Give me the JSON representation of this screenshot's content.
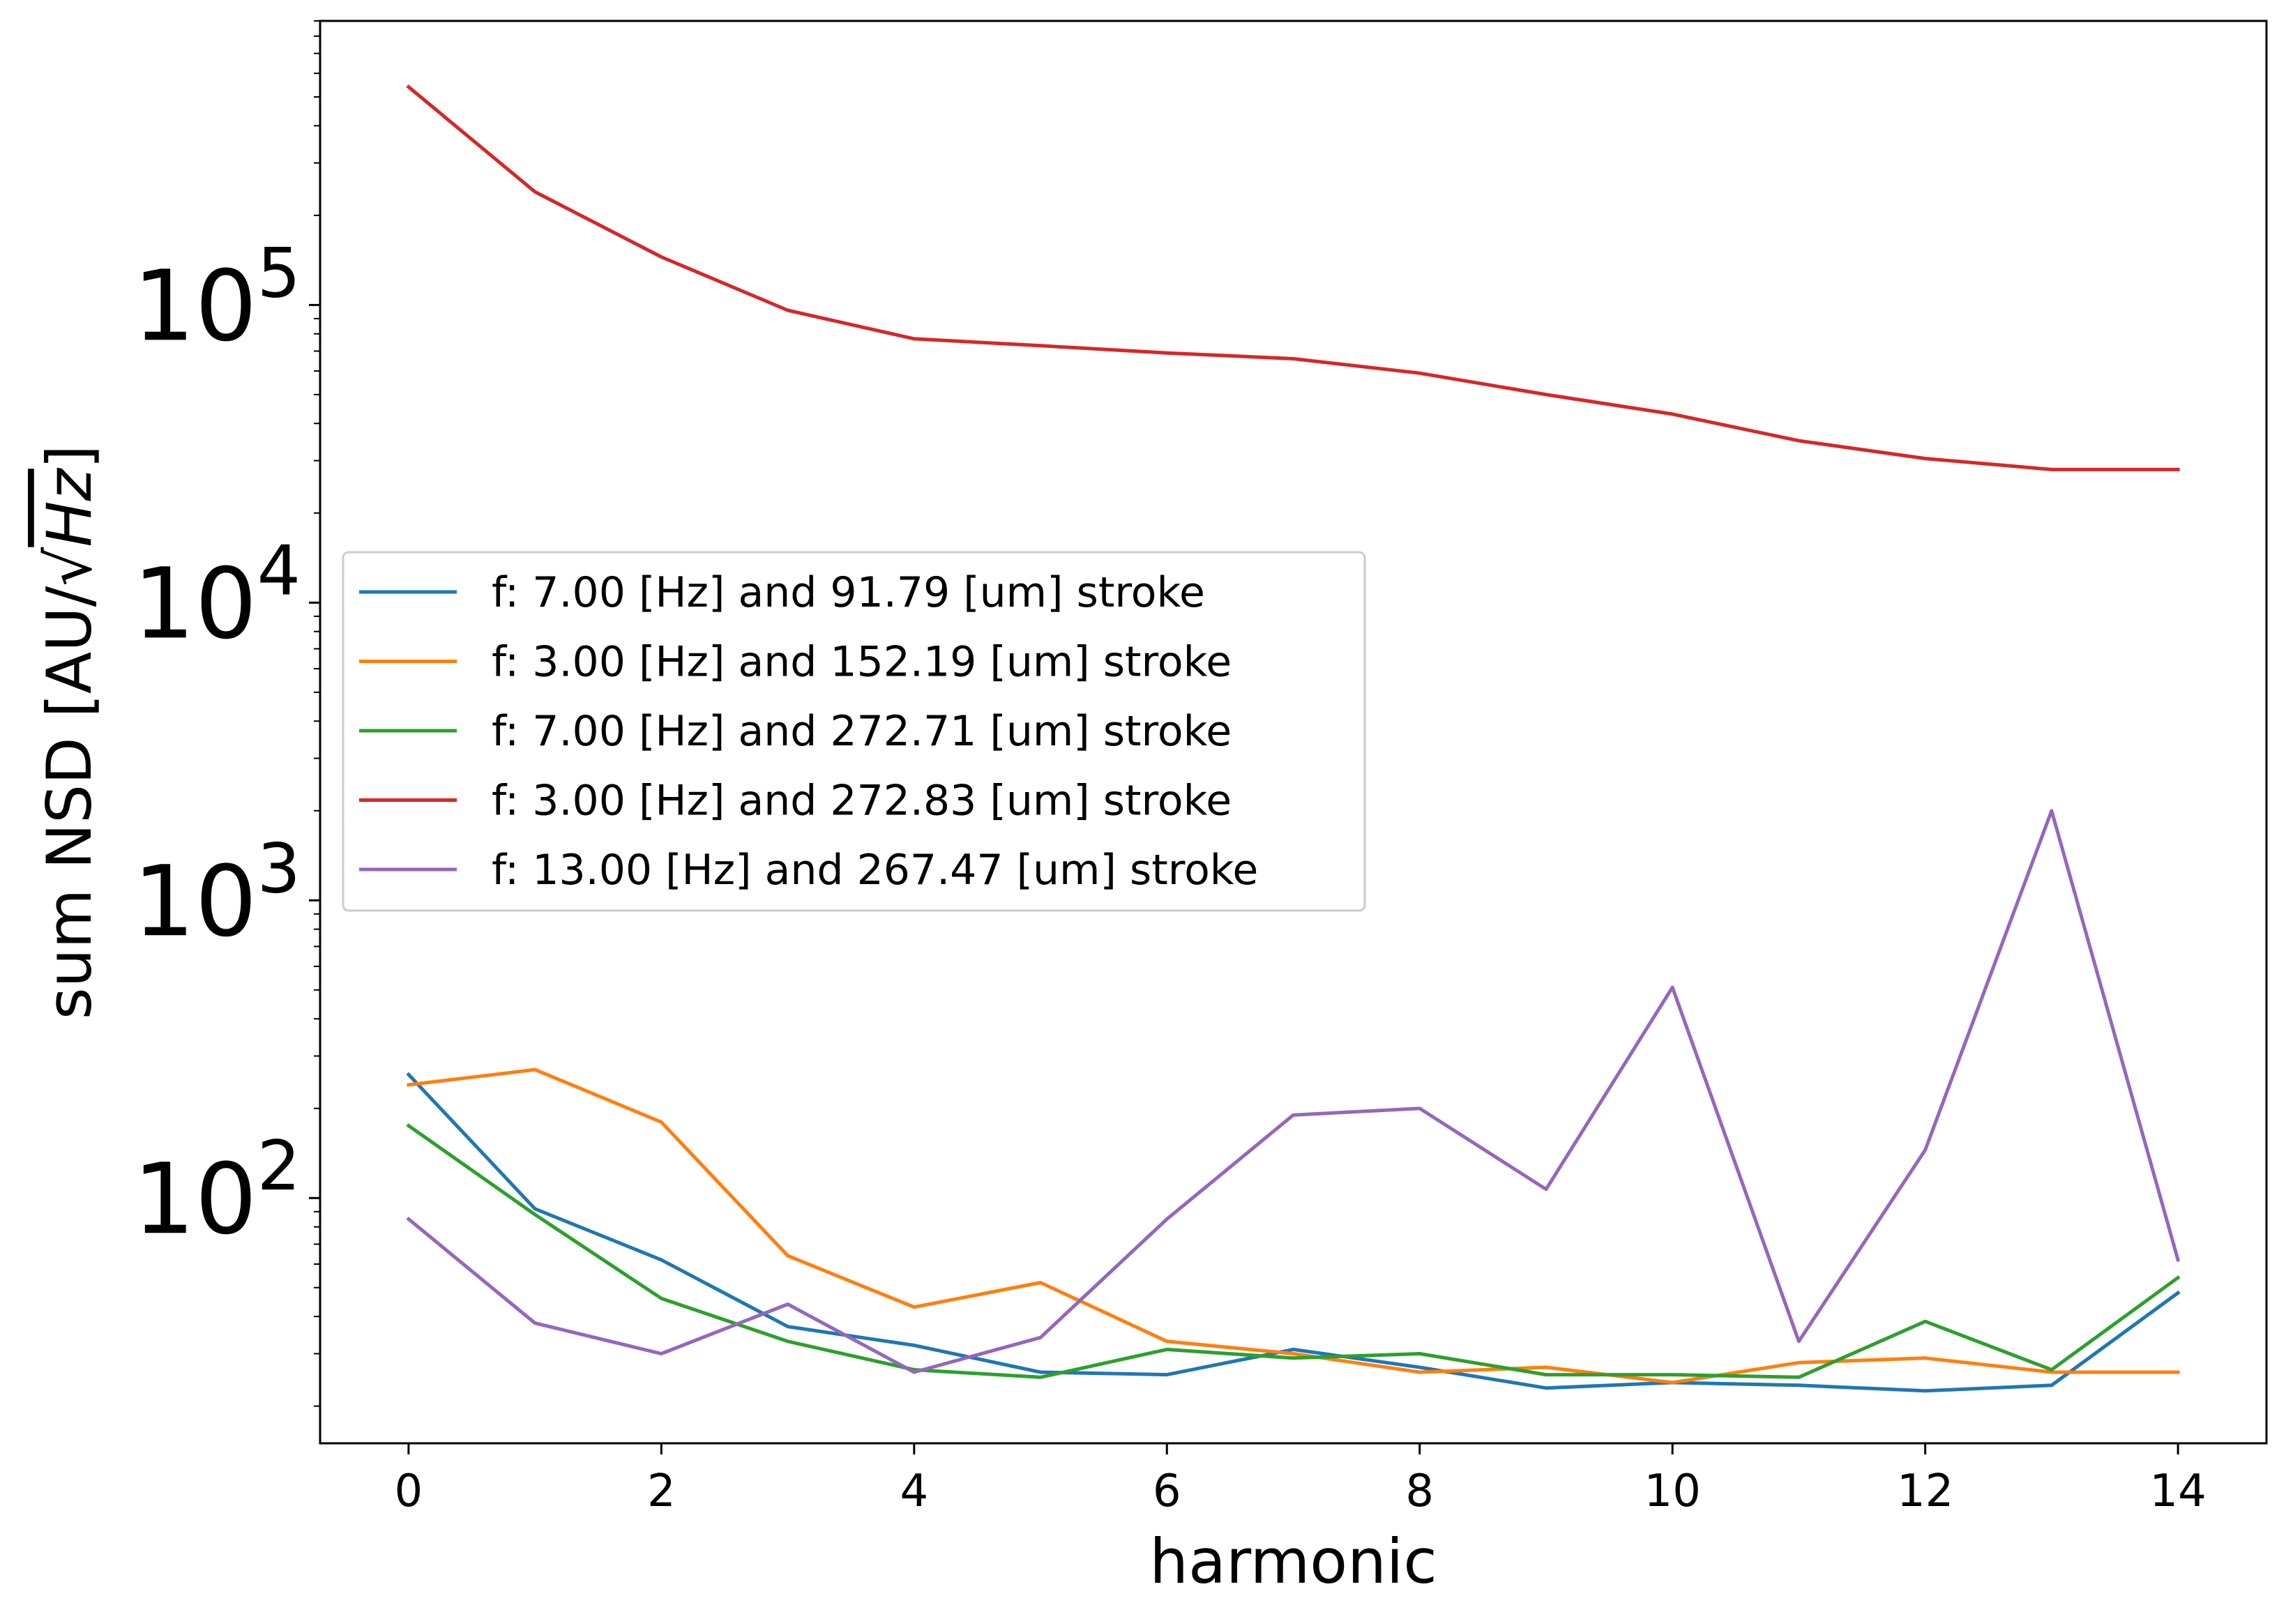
{
  "chart_data": {
    "type": "line",
    "xlabel": "harmonic",
    "ylabel": "sum NSD [AU/√Hz]",
    "ylabel_parts": {
      "before": "sum NSD [AU/",
      "radical": "√",
      "radicand": "Hz",
      "after": "]"
    },
    "xlim": [
      -0.7,
      14.7
    ],
    "ylim": [
      15,
      900000
    ],
    "yscale": "log",
    "grid": false,
    "legend_position": "center-left",
    "x": [
      0,
      1,
      2,
      3,
      4,
      5,
      6,
      7,
      8,
      9,
      10,
      11,
      12,
      13,
      14
    ],
    "x_ticks": [
      0,
      2,
      4,
      6,
      8,
      10,
      12,
      14
    ],
    "x_tick_labels": [
      "0",
      "2",
      "4",
      "6",
      "8",
      "10",
      "12",
      "14"
    ],
    "y_major_ticks": [
      {
        "value": 100,
        "base": "10",
        "exp": "2"
      },
      {
        "value": 1000,
        "base": "10",
        "exp": "3"
      },
      {
        "value": 10000,
        "base": "10",
        "exp": "4"
      },
      {
        "value": 100000,
        "base": "10",
        "exp": "5"
      }
    ],
    "series": [
      {
        "name": "f: 7.00 [Hz] and 91.79 [um] stroke",
        "color": "#1f77b4",
        "values": [
          260,
          92,
          62,
          37,
          32,
          26,
          25.5,
          31,
          27,
          23,
          24,
          23.5,
          22.5,
          23.5,
          48
        ]
      },
      {
        "name": "f: 3.00 [Hz] and 152.19 [um] stroke",
        "color": "#ff7f0e",
        "values": [
          240,
          270,
          180,
          64,
          43,
          52,
          33,
          30,
          26,
          27,
          24,
          28,
          29,
          26,
          26
        ]
      },
      {
        "name": "f: 7.00 [Hz] and 272.71 [um] stroke",
        "color": "#2ca02c",
        "values": [
          175,
          88,
          46,
          33,
          26.5,
          25,
          31,
          29,
          30,
          25.5,
          25.5,
          25,
          38.5,
          26.5,
          54
        ]
      },
      {
        "name": "f: 3.00 [Hz] and 272.83 [um] stroke",
        "color": "#d62728",
        "values": [
          540000,
          240000,
          145000,
          96000,
          77000,
          73000,
          69000,
          66000,
          59000,
          50000,
          43000,
          35000,
          30500,
          28000,
          28000
        ]
      },
      {
        "name": "f: 13.00 [Hz] and 267.47 [um] stroke",
        "color": "#9467bd",
        "values": [
          85,
          38,
          30,
          44,
          26,
          34,
          85,
          190,
          200,
          107,
          510,
          33,
          145,
          2000,
          62
        ]
      }
    ]
  }
}
